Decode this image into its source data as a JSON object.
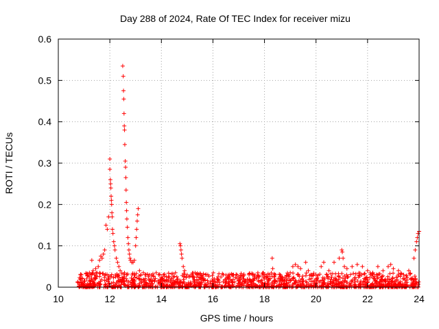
{
  "chart_data": {
    "type": "scatter",
    "title": "Day 288 of 2024, Rate Of TEC Index for receiver mizu",
    "xlabel": "GPS time / hours",
    "ylabel": "ROTI / TECUs",
    "xlim": [
      10,
      24
    ],
    "ylim": [
      0,
      0.6
    ],
    "xticks": [
      10,
      12,
      14,
      16,
      18,
      20,
      22,
      24
    ],
    "yticks": [
      0,
      0.1,
      0.2,
      0.3,
      0.4,
      0.5,
      0.6
    ],
    "ytick_labels": [
      "0",
      "0.1",
      "0.2",
      "0.3",
      "0.4",
      "0.5",
      "0.6"
    ],
    "grid": true,
    "marker": "+",
    "color": "#ff0000",
    "series": [
      {
        "name": "ROTI",
        "points": [
          [
            10.8,
            0.01
          ],
          [
            10.85,
            0.02
          ],
          [
            10.9,
            0.03
          ],
          [
            11.0,
            0.015
          ],
          [
            11.1,
            0.02
          ],
          [
            11.2,
            0.025
          ],
          [
            11.3,
            0.065
          ],
          [
            11.35,
            0.04
          ],
          [
            11.4,
            0.03
          ],
          [
            11.45,
            0.045
          ],
          [
            11.5,
            0.035
          ],
          [
            11.55,
            0.05
          ],
          [
            11.6,
            0.065
          ],
          [
            11.65,
            0.075
          ],
          [
            11.7,
            0.07
          ],
          [
            11.75,
            0.08
          ],
          [
            11.8,
            0.09
          ],
          [
            11.85,
            0.15
          ],
          [
            11.9,
            0.14
          ],
          [
            11.95,
            0.17
          ],
          [
            12.0,
            0.31
          ],
          [
            12.0,
            0.285
          ],
          [
            12.02,
            0.26
          ],
          [
            12.03,
            0.25
          ],
          [
            12.04,
            0.24
          ],
          [
            12.05,
            0.22
          ],
          [
            12.06,
            0.21
          ],
          [
            12.07,
            0.2
          ],
          [
            12.08,
            0.18
          ],
          [
            12.09,
            0.17
          ],
          [
            12.1,
            0.14
          ],
          [
            12.12,
            0.13
          ],
          [
            12.15,
            0.11
          ],
          [
            12.18,
            0.1
          ],
          [
            12.2,
            0.09
          ],
          [
            12.25,
            0.07
          ],
          [
            12.3,
            0.06
          ],
          [
            12.35,
            0.05
          ],
          [
            12.4,
            0.04
          ],
          [
            12.5,
            0.535
          ],
          [
            12.52,
            0.51
          ],
          [
            12.53,
            0.475
          ],
          [
            12.54,
            0.455
          ],
          [
            12.55,
            0.42
          ],
          [
            12.56,
            0.39
          ],
          [
            12.57,
            0.38
          ],
          [
            12.58,
            0.345
          ],
          [
            12.6,
            0.305
          ],
          [
            12.61,
            0.29
          ],
          [
            12.62,
            0.265
          ],
          [
            12.63,
            0.235
          ],
          [
            12.64,
            0.205
          ],
          [
            12.65,
            0.185
          ],
          [
            12.66,
            0.165
          ],
          [
            12.68,
            0.145
          ],
          [
            12.7,
            0.12
          ],
          [
            12.72,
            0.105
          ],
          [
            12.74,
            0.09
          ],
          [
            12.76,
            0.08
          ],
          [
            12.78,
            0.07
          ],
          [
            12.8,
            0.065
          ],
          [
            12.85,
            0.06
          ],
          [
            12.9,
            0.06
          ],
          [
            12.95,
            0.065
          ],
          [
            13.0,
            0.1
          ],
          [
            13.02,
            0.12
          ],
          [
            13.04,
            0.14
          ],
          [
            13.06,
            0.16
          ],
          [
            13.08,
            0.175
          ],
          [
            13.1,
            0.19
          ],
          [
            13.15,
            0.04
          ],
          [
            13.2,
            0.03
          ],
          [
            13.3,
            0.035
          ],
          [
            13.4,
            0.03
          ],
          [
            13.5,
            0.025
          ],
          [
            13.6,
            0.02
          ],
          [
            13.7,
            0.025
          ],
          [
            13.8,
            0.035
          ],
          [
            13.9,
            0.03
          ],
          [
            14.0,
            0.02
          ],
          [
            14.2,
            0.025
          ],
          [
            14.4,
            0.02
          ],
          [
            14.6,
            0.025
          ],
          [
            14.72,
            0.105
          ],
          [
            14.74,
            0.1
          ],
          [
            14.76,
            0.09
          ],
          [
            14.78,
            0.08
          ],
          [
            14.8,
            0.07
          ],
          [
            14.85,
            0.05
          ],
          [
            14.9,
            0.04
          ],
          [
            15.0,
            0.03
          ],
          [
            15.2,
            0.025
          ],
          [
            15.4,
            0.03
          ],
          [
            15.6,
            0.025
          ],
          [
            15.8,
            0.03
          ],
          [
            16.0,
            0.02
          ],
          [
            16.2,
            0.025
          ],
          [
            16.4,
            0.03
          ],
          [
            16.6,
            0.025
          ],
          [
            16.8,
            0.03
          ],
          [
            17.0,
            0.025
          ],
          [
            17.2,
            0.02
          ],
          [
            17.4,
            0.03
          ],
          [
            17.6,
            0.025
          ],
          [
            17.8,
            0.025
          ],
          [
            18.0,
            0.02
          ],
          [
            18.2,
            0.03
          ],
          [
            18.3,
            0.07
          ],
          [
            18.32,
            0.045
          ],
          [
            18.4,
            0.03
          ],
          [
            18.6,
            0.025
          ],
          [
            18.8,
            0.02
          ],
          [
            19.0,
            0.035
          ],
          [
            19.1,
            0.05
          ],
          [
            19.2,
            0.055
          ],
          [
            19.3,
            0.05
          ],
          [
            19.4,
            0.045
          ],
          [
            19.6,
            0.06
          ],
          [
            19.7,
            0.04
          ],
          [
            19.8,
            0.03
          ],
          [
            20.0,
            0.03
          ],
          [
            20.2,
            0.05
          ],
          [
            20.3,
            0.06
          ],
          [
            20.5,
            0.04
          ],
          [
            20.7,
            0.06
          ],
          [
            20.9,
            0.07
          ],
          [
            21.0,
            0.09
          ],
          [
            21.02,
            0.085
          ],
          [
            21.05,
            0.07
          ],
          [
            21.1,
            0.05
          ],
          [
            21.2,
            0.045
          ],
          [
            21.4,
            0.05
          ],
          [
            21.6,
            0.055
          ],
          [
            21.8,
            0.05
          ],
          [
            22.0,
            0.04
          ],
          [
            22.2,
            0.035
          ],
          [
            22.4,
            0.05
          ],
          [
            22.6,
            0.04
          ],
          [
            22.8,
            0.05
          ],
          [
            22.9,
            0.055
          ],
          [
            23.0,
            0.045
          ],
          [
            23.2,
            0.04
          ],
          [
            23.4,
            0.03
          ],
          [
            23.6,
            0.04
          ],
          [
            23.8,
            0.07
          ],
          [
            23.85,
            0.09
          ],
          [
            23.9,
            0.11
          ],
          [
            23.93,
            0.12
          ],
          [
            23.96,
            0.13
          ],
          [
            24.0,
            0.135
          ]
        ]
      }
    ]
  }
}
